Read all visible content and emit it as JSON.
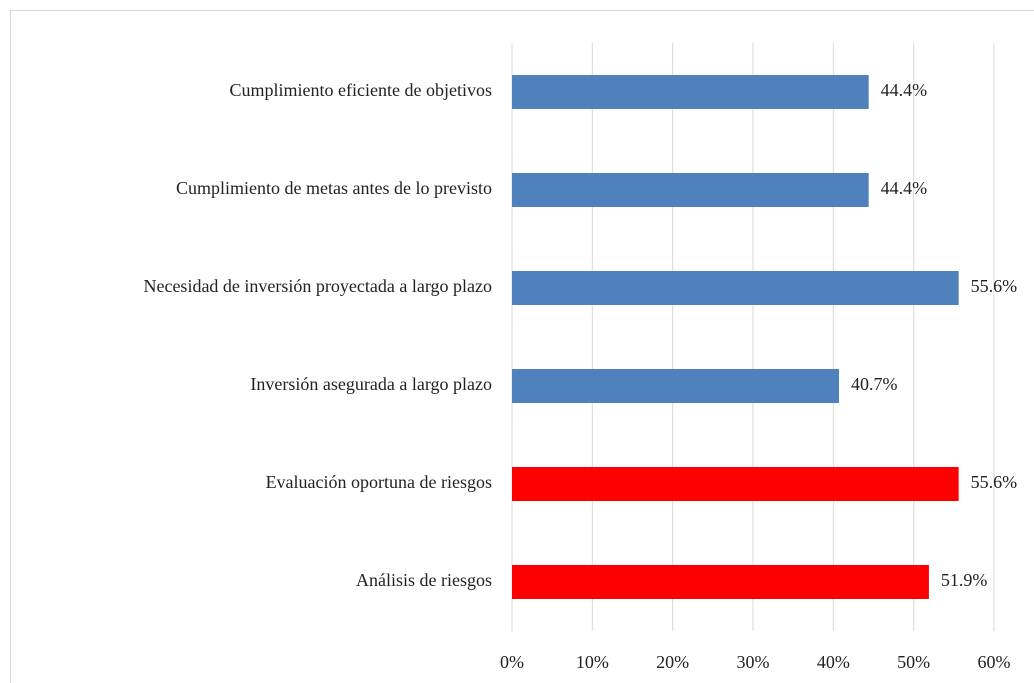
{
  "chart_data": {
    "type": "barh",
    "categories": [
      "Cumplimiento eficiente de objetivos",
      "Cumplimiento de metas antes de lo previsto",
      "Necesidad de inversión proyectada a largo plazo",
      "Inversión asegurada a largo plazo",
      "Evaluación oportuna de riesgos",
      "Análisis de riesgos"
    ],
    "values": [
      44.4,
      44.4,
      55.6,
      40.7,
      55.6,
      51.9
    ],
    "value_labels": [
      "44.4%",
      "44.4%",
      "55.6%",
      "40.7%",
      "55.6%",
      "51.9%"
    ],
    "colors": [
      "#4f81bd",
      "#4f81bd",
      "#4f81bd",
      "#4f81bd",
      "#ff0000",
      "#ff0000"
    ],
    "xlim": [
      0,
      60
    ],
    "xticks": [
      {
        "value": 0,
        "label": "0%"
      },
      {
        "value": 10,
        "label": "10%"
      },
      {
        "value": 20,
        "label": "20%"
      },
      {
        "value": 30,
        "label": "30%"
      },
      {
        "value": 40,
        "label": "40%"
      },
      {
        "value": 50,
        "label": "50%"
      },
      {
        "value": 60,
        "label": "60%"
      }
    ],
    "grid": true
  }
}
